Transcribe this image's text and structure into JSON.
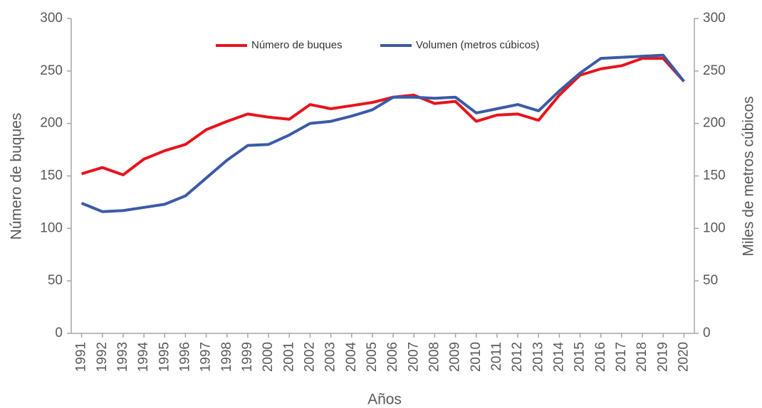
{
  "chart_data": {
    "type": "line",
    "x_label": "Años",
    "y_label": "Número de buques",
    "y2_label": "Miles de metros cúbicos",
    "categories": [
      "1991",
      "1992",
      "1993",
      "1994",
      "1995",
      "1996",
      "1997",
      "1998",
      "1999",
      "2000",
      "2001",
      "2002",
      "2003",
      "2004",
      "2005",
      "2006",
      "2007",
      "2008",
      "2009",
      "2010",
      "2011",
      "2012",
      "2013",
      "2014",
      "2015",
      "2016",
      "2017",
      "2018",
      "2019",
      "2020"
    ],
    "series": [
      {
        "name": "Número de buques",
        "color": "#e8131b",
        "axis": "y",
        "values": [
          152,
          158,
          151,
          166,
          174,
          180,
          194,
          202,
          209,
          206,
          204,
          218,
          214,
          217,
          220,
          225,
          227,
          219,
          221,
          202,
          208,
          209,
          203,
          227,
          246,
          252,
          255,
          262,
          262,
          240
        ]
      },
      {
        "name": "Volumen  (metros cúbicos)",
        "color": "#3a5ba5",
        "axis": "y2",
        "values": [
          124,
          116,
          117,
          120,
          123,
          131,
          148,
          165,
          179,
          180,
          189,
          200,
          202,
          207,
          213,
          225,
          225,
          224,
          225,
          210,
          214,
          218,
          212,
          231,
          248,
          262,
          263,
          264,
          265,
          240
        ]
      }
    ],
    "ylim": [
      0,
      300
    ],
    "yticks": [
      0,
      50,
      100,
      150,
      200,
      250,
      300
    ],
    "y2lim": [
      0,
      300
    ],
    "y2ticks": [
      0,
      50,
      100,
      150,
      200,
      250,
      300
    ],
    "grid": false,
    "legend": "top"
  }
}
